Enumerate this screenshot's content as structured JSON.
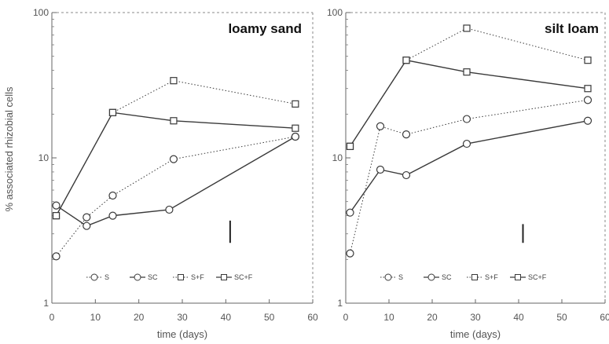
{
  "figure": {
    "ylabel": "% associated rhizobial cells",
    "xlabel": "time (days)"
  },
  "chart_data": [
    {
      "type": "line",
      "title": "loamy sand",
      "xlabel": "time (days)",
      "ylabel": "% associated rhizobial cells",
      "xlim": [
        0,
        60
      ],
      "xticks": [
        0,
        10,
        20,
        30,
        40,
        50,
        60
      ],
      "ylim": [
        1,
        100
      ],
      "yscale": "log",
      "yticks": [
        1,
        10,
        100
      ],
      "series": [
        {
          "name": "S",
          "marker": "circle",
          "style": "dotted",
          "x": [
            1,
            8,
            14,
            28,
            56
          ],
          "y": [
            2.1,
            3.9,
            5.5,
            9.8,
            14.0
          ]
        },
        {
          "name": "SC",
          "marker": "circle",
          "style": "solid",
          "x": [
            1,
            8,
            14,
            27,
            56
          ],
          "y": [
            4.7,
            3.4,
            4.0,
            4.4,
            14.0
          ]
        },
        {
          "name": "S+F",
          "marker": "square",
          "style": "dotted",
          "x": [
            1,
            14,
            28,
            56
          ],
          "y": [
            4.0,
            20.5,
            34.0,
            23.5
          ]
        },
        {
          "name": "SC+F",
          "marker": "square",
          "style": "solid",
          "x": [
            1,
            14,
            28,
            56
          ],
          "y": [
            4.0,
            20.5,
            18.0,
            16.0
          ]
        }
      ],
      "error_bar_x": 41,
      "error_bar_y": [
        2.6,
        3.7
      ]
    },
    {
      "type": "line",
      "title": "silt loam",
      "xlabel": "time (days)",
      "xlim": [
        0,
        60
      ],
      "xticks": [
        0,
        10,
        20,
        30,
        40,
        50,
        60
      ],
      "ylim": [
        1,
        100
      ],
      "yscale": "log",
      "yticks": [
        1,
        10,
        100
      ],
      "series": [
        {
          "name": "S",
          "marker": "circle",
          "style": "dotted",
          "x": [
            1,
            8,
            14,
            28,
            56
          ],
          "y": [
            2.2,
            16.5,
            14.5,
            18.5,
            25.0
          ]
        },
        {
          "name": "SC",
          "marker": "circle",
          "style": "solid",
          "x": [
            1,
            8,
            14,
            28,
            56
          ],
          "y": [
            4.2,
            8.3,
            7.6,
            12.5,
            18.0
          ]
        },
        {
          "name": "S+F",
          "marker": "square",
          "style": "dotted",
          "x": [
            1,
            14,
            28,
            56
          ],
          "y": [
            12.0,
            47.0,
            78.0,
            47.0
          ]
        },
        {
          "name": "SC+F",
          "marker": "square",
          "style": "solid",
          "x": [
            1,
            14,
            28,
            56
          ],
          "y": [
            12.0,
            47.0,
            39.0,
            30.0
          ]
        }
      ],
      "error_bar_x": 41,
      "error_bar_y": [
        2.6,
        3.5
      ]
    }
  ]
}
